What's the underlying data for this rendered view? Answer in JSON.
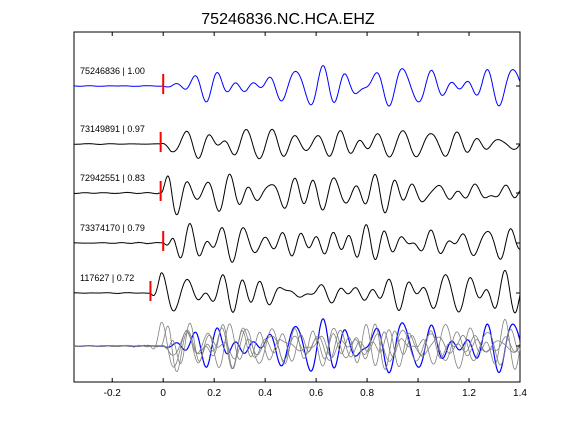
{
  "chart_data": {
    "type": "line",
    "title": "75246836.NC.HCA.EHZ",
    "xlabel": "",
    "ylabel": "",
    "xlim": [
      -0.35,
      1.4
    ],
    "xticks": [
      -0.2,
      0,
      0.2,
      0.4,
      0.6,
      0.8,
      1,
      1.2,
      1.4
    ],
    "xtick_labels": [
      "-0.2",
      "0",
      "0.2",
      "0.4",
      "0.6",
      "0.8",
      "1",
      "1.2",
      "1.4"
    ],
    "grid": false,
    "legend": "none",
    "series": [
      {
        "name": "75246836 | 1.00",
        "event_id": "75246836",
        "correlation": "1.00",
        "pick_time": 0.0,
        "color": "#0000ff",
        "pick_color": "#ff0000"
      },
      {
        "name": "73149891 | 0.97",
        "event_id": "73149891",
        "correlation": "0.97",
        "pick_time": -0.01,
        "color": "#000000",
        "pick_color": "#ff0000"
      },
      {
        "name": "72942551 | 0.83",
        "event_id": "72942551",
        "correlation": "0.83",
        "pick_time": -0.01,
        "color": "#000000",
        "pick_color": "#ff0000"
      },
      {
        "name": "73374170 | 0.79",
        "event_id": "73374170",
        "correlation": "0.79",
        "pick_time": 0.0,
        "color": "#000000",
        "pick_color": "#ff0000"
      },
      {
        "name": "117627 | 0.72",
        "event_id": "117627",
        "correlation": "0.72",
        "pick_time": -0.05,
        "color": "#000000",
        "pick_color": "#ff0000"
      }
    ],
    "stack": {
      "name": "overlay",
      "colors": [
        "#808080",
        "#0000ff"
      ]
    }
  }
}
